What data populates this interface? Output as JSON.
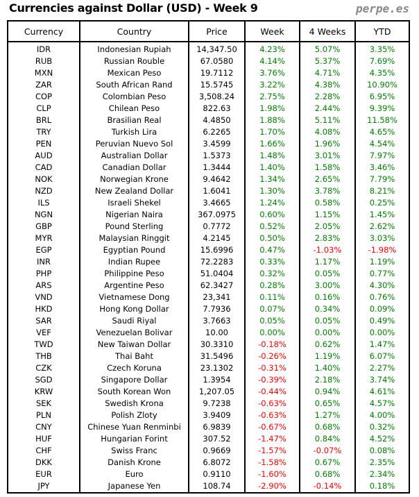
{
  "title": "Currencies against Dollar (USD) - Week 9",
  "brand": "perpe.es",
  "colors": {
    "positive": "#008000",
    "negative": "#ff0000"
  },
  "headers": [
    "Currency",
    "Country",
    "Price",
    "Week",
    "4 Weeks",
    "YTD"
  ],
  "rows": [
    [
      "IDR",
      "Indonesian Rupiah",
      "14,347.50",
      "4.23%",
      "5.07%",
      "3.35%"
    ],
    [
      "RUB",
      "Russian Rouble",
      "67.0580",
      "4.14%",
      "5.37%",
      "7.69%"
    ],
    [
      "MXN",
      "Mexican Peso",
      "19.7112",
      "3.76%",
      "4.71%",
      "4.35%"
    ],
    [
      "ZAR",
      "South African Rand",
      "15.5745",
      "3.22%",
      "4.38%",
      "10.90%"
    ],
    [
      "COP",
      "Colombian Peso",
      "3,508.24",
      "2.75%",
      "2.28%",
      "6.95%"
    ],
    [
      "CLP",
      "Chilean Peso",
      "822.63",
      "1.98%",
      "2.44%",
      "9.39%"
    ],
    [
      "BRL",
      "Brasilian Real",
      "4.4850",
      "1.88%",
      "5.11%",
      "11.58%"
    ],
    [
      "TRY",
      "Turkish Lira",
      "6.2265",
      "1.70%",
      "4.08%",
      "4.65%"
    ],
    [
      "PEN",
      "Peruvian Nuevo Sol",
      "3.4599",
      "1.66%",
      "1.96%",
      "4.54%"
    ],
    [
      "AUD",
      "Australian Dollar",
      "1.5373",
      "1.48%",
      "3.01%",
      "7.97%"
    ],
    [
      "CAD",
      "Canadian Dollar",
      "1.3444",
      "1.40%",
      "1.58%",
      "3.46%"
    ],
    [
      "NOK",
      "Norwegian Krone",
      "9.4642",
      "1.34%",
      "2.65%",
      "7.79%"
    ],
    [
      "NZD",
      "New Zealand Dollar",
      "1.6041",
      "1.30%",
      "3.78%",
      "8.21%"
    ],
    [
      "ILS",
      "Israeli Shekel",
      "3.4665",
      "1.24%",
      "0.58%",
      "0.25%"
    ],
    [
      "NGN",
      "Nigerian Naira",
      "367.0975",
      "0.60%",
      "1.15%",
      "1.45%"
    ],
    [
      "GBP",
      "Pound Sterling",
      "0.7772",
      "0.52%",
      "2.05%",
      "2.62%"
    ],
    [
      "MYR",
      "Malaysian Ringgit",
      "4.2145",
      "0.50%",
      "2.83%",
      "3.03%"
    ],
    [
      "EGP",
      "Egyptian Pound",
      "15.6996",
      "0.47%",
      "-1.03%",
      "-1.98%"
    ],
    [
      "INR",
      "Indian Rupee",
      "72.2283",
      "0.33%",
      "1.17%",
      "1.19%"
    ],
    [
      "PHP",
      "Philippine Peso",
      "51.0404",
      "0.32%",
      "0.05%",
      "0.77%"
    ],
    [
      "ARS",
      "Argentine Peso",
      "62.3427",
      "0.28%",
      "3.00%",
      "4.30%"
    ],
    [
      "VND",
      "Vietnamese Dong",
      "23,341",
      "0.11%",
      "0.16%",
      "0.76%"
    ],
    [
      "HKD",
      "Hong Kong Dollar",
      "7.7936",
      "0.07%",
      "0.34%",
      "0.09%"
    ],
    [
      "SAR",
      "Saudi Riyal",
      "3.7663",
      "0.05%",
      "0.05%",
      "0.49%"
    ],
    [
      "VEF",
      "Venezuelan Bolivar",
      "10.00",
      "0.00%",
      "0.00%",
      "0.00%"
    ],
    [
      "TWD",
      "New Taiwan Dollar",
      "30.3310",
      "-0.18%",
      "0.62%",
      "1.47%"
    ],
    [
      "THB",
      "Thai Baht",
      "31.5496",
      "-0.26%",
      "1.19%",
      "6.07%"
    ],
    [
      "CZK",
      "Czech Koruna",
      "23.1302",
      "-0.31%",
      "1.40%",
      "2.27%"
    ],
    [
      "SGD",
      "Singapore Dollar",
      "1.3954",
      "-0.39%",
      "2.18%",
      "3.74%"
    ],
    [
      "KRW",
      "South Korean Won",
      "1,207.05",
      "-0.44%",
      "0.94%",
      "4.61%"
    ],
    [
      "SEK",
      "Swedish Krona",
      "9.7238",
      "-0.63%",
      "0.65%",
      "4.57%"
    ],
    [
      "PLN",
      "Polish Zloty",
      "3.9409",
      "-0.63%",
      "1.27%",
      "4.00%"
    ],
    [
      "CNY",
      "Chinese Yuan Renminbi",
      "6.9839",
      "-0.67%",
      "0.68%",
      "0.32%"
    ],
    [
      "HUF",
      "Hungarian Forint",
      "307.52",
      "-1.47%",
      "0.84%",
      "4.52%"
    ],
    [
      "CHF",
      "Swiss Franc",
      "0.9669",
      "-1.57%",
      "-0.07%",
      "0.08%"
    ],
    [
      "DKK",
      "Danish Krone",
      "6.8072",
      "-1.58%",
      "0.67%",
      "2.35%"
    ],
    [
      "EUR",
      "Euro",
      "0.9110",
      "-1.60%",
      "0.68%",
      "2.34%"
    ],
    [
      "JPY",
      "Japanese Yen",
      "108.74",
      "-2.90%",
      "-0.14%",
      "0.18%"
    ]
  ]
}
